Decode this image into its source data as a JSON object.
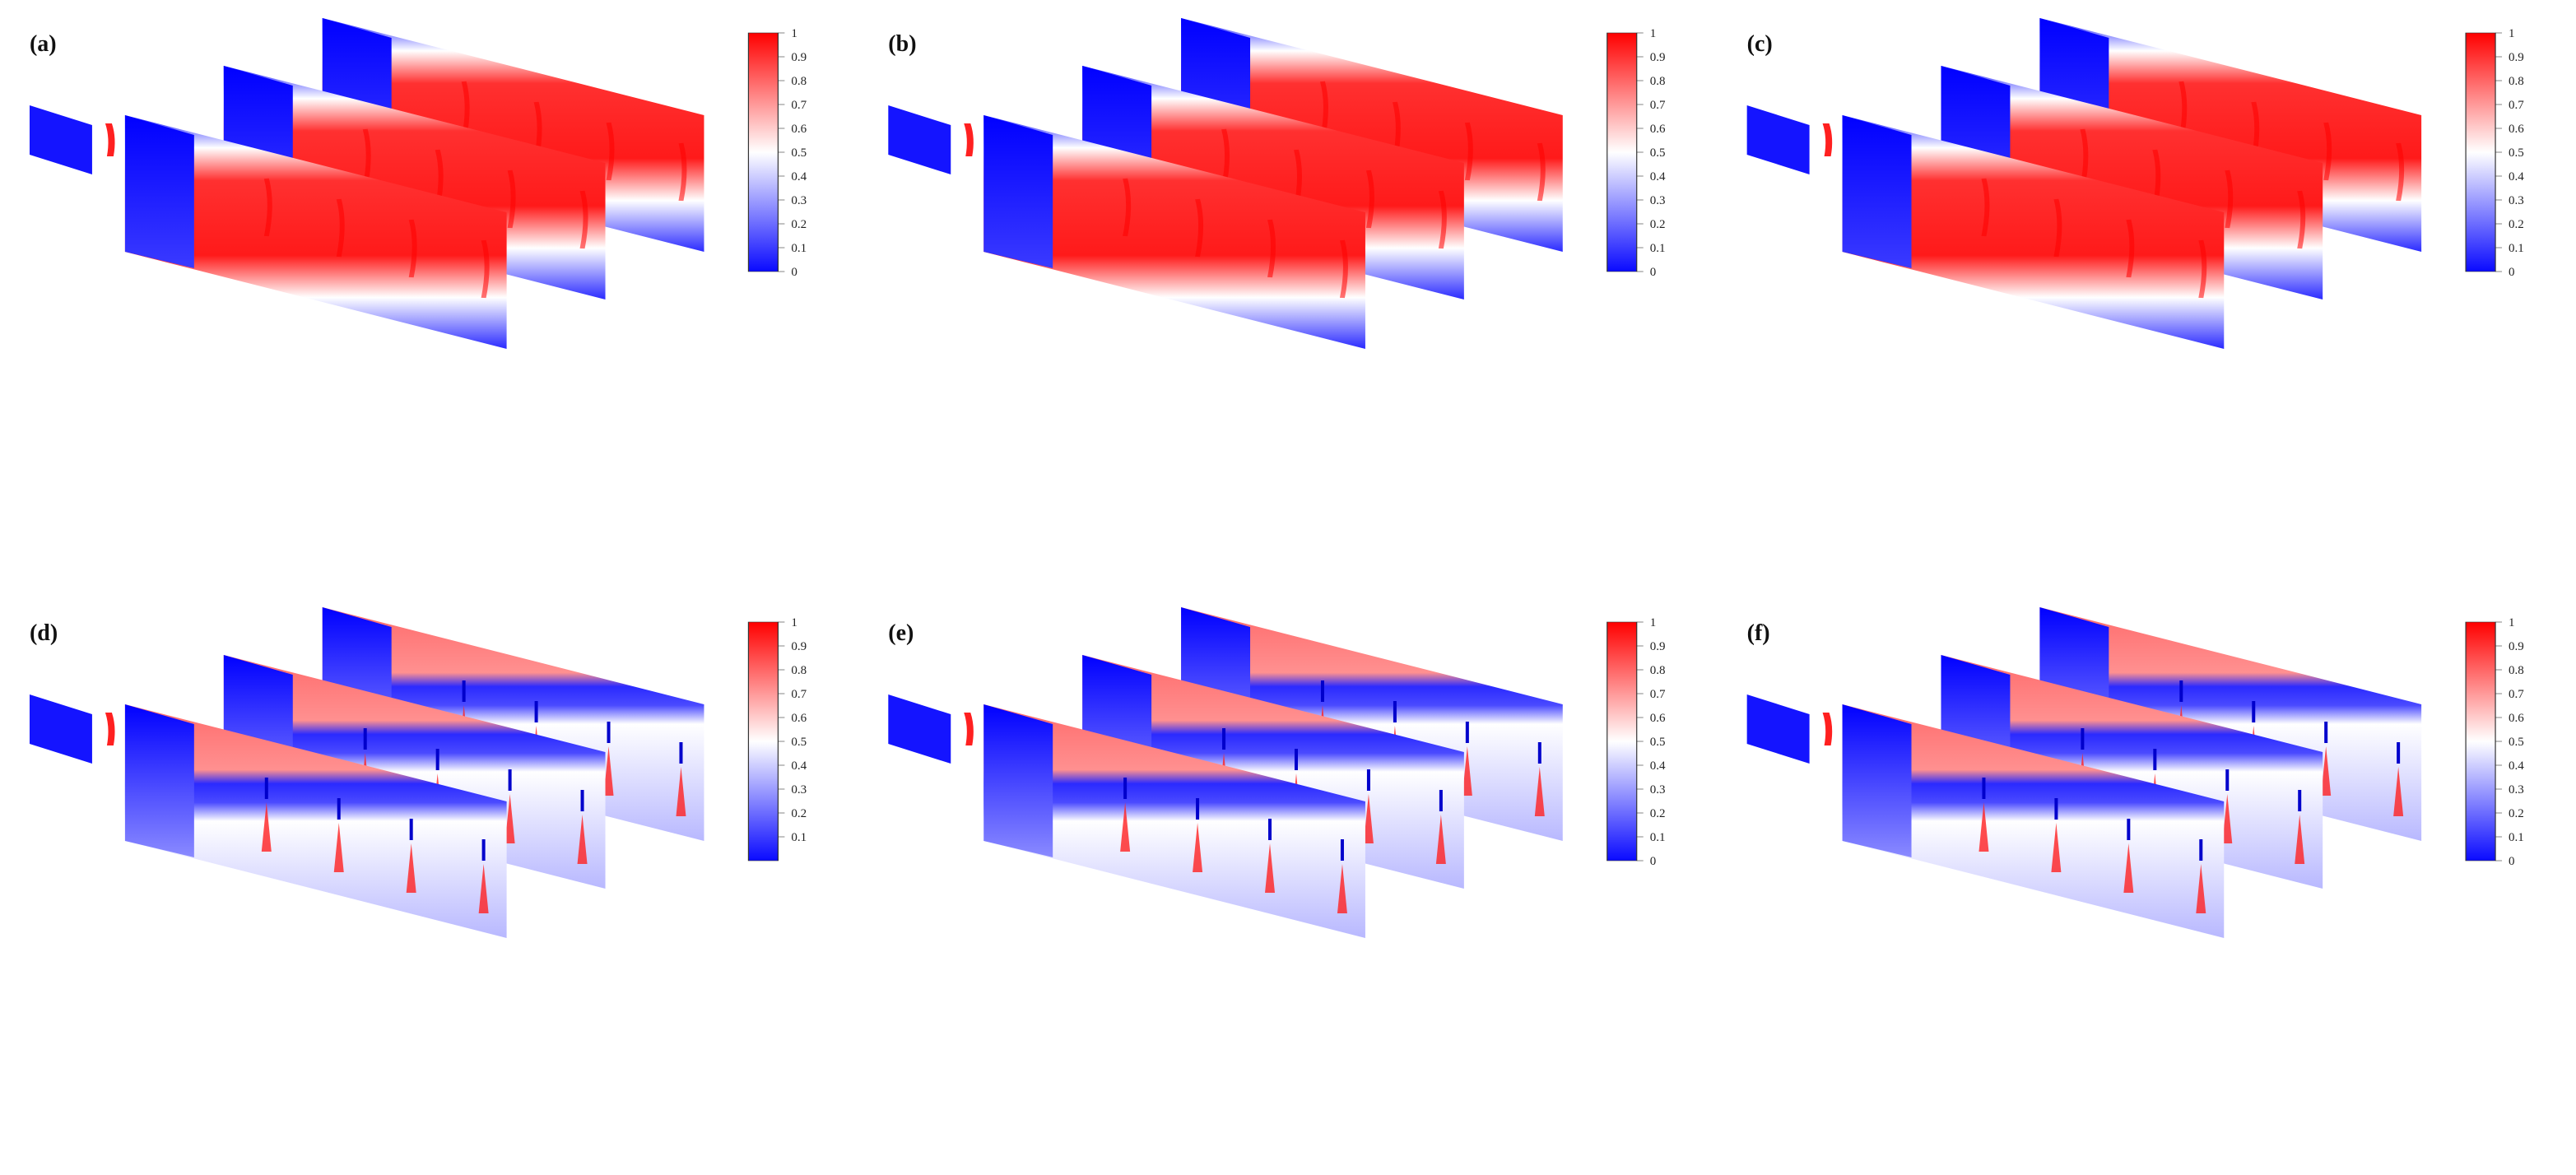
{
  "panels": [
    {
      "label": "(a)",
      "variant": "top"
    },
    {
      "label": "(b)",
      "variant": "top"
    },
    {
      "label": "(c)",
      "variant": "top"
    },
    {
      "label": "(d)",
      "variant": "bottom"
    },
    {
      "label": "(e)",
      "variant": "bottom"
    },
    {
      "label": "(f)",
      "variant": "bottom"
    }
  ],
  "colorbar": {
    "ticks_full": [
      "1",
      "0.9",
      "0.8",
      "0.7",
      "0.6",
      "0.5",
      "0.4",
      "0.3",
      "0.2",
      "0.1",
      "0"
    ],
    "ticks_no_zero": [
      "1",
      "0.9",
      "0.8",
      "0.7",
      "0.6",
      "0.5",
      "0.4",
      "0.3",
      "0.2",
      "0.1"
    ],
    "panel_d_omits_zero": true,
    "colors": {
      "low": "#0a0aff",
      "mid": "#ffffff",
      "high": "#ff0000"
    }
  }
}
